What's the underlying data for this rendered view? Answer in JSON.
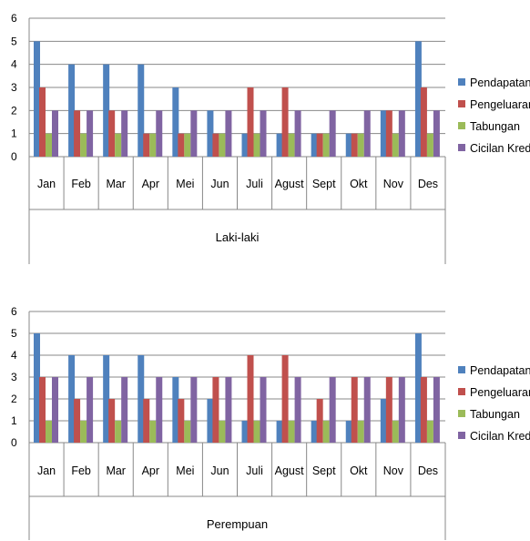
{
  "colors": {
    "Pendapatan": "#4f81bd",
    "Pengeluaran": "#c0504d",
    "Tabungan": "#9bbb59",
    "Cicilan Kredit": "#8064a2",
    "grid": "#888888",
    "axis": "#888888"
  },
  "chart_data": [
    {
      "type": "bar",
      "group_label": "Laki-laki",
      "categories": [
        "Jan",
        "Feb",
        "Mar",
        "Apr",
        "Mei",
        "Jun",
        "Juli",
        "Agust",
        "Sept",
        "Okt",
        "Nov",
        "Des"
      ],
      "ylim": [
        0,
        6
      ],
      "yticks": [
        0,
        1,
        2,
        3,
        4,
        5,
        6
      ],
      "grid": true,
      "legend_position": "right",
      "series": [
        {
          "name": "Pendapatan",
          "values": [
            5,
            4,
            4,
            4,
            3,
            2,
            1,
            1,
            1,
            1,
            2,
            5
          ]
        },
        {
          "name": "Pengeluaran",
          "values": [
            3,
            2,
            2,
            1,
            1,
            1,
            3,
            3,
            1,
            1,
            2,
            3
          ]
        },
        {
          "name": "Tabungan",
          "values": [
            1,
            1,
            1,
            1,
            1,
            1,
            1,
            1,
            1,
            1,
            1,
            1
          ]
        },
        {
          "name": "Cicilan Kredit",
          "values": [
            2,
            2,
            2,
            2,
            2,
            2,
            2,
            2,
            2,
            2,
            2,
            2
          ]
        }
      ]
    },
    {
      "type": "bar",
      "group_label": "Perempuan",
      "categories": [
        "Jan",
        "Feb",
        "Mar",
        "Apr",
        "Mei",
        "Jun",
        "Juli",
        "Agust",
        "Sept",
        "Okt",
        "Nov",
        "Des"
      ],
      "ylim": [
        0,
        6
      ],
      "yticks": [
        0,
        1,
        2,
        3,
        4,
        5,
        6
      ],
      "grid": true,
      "legend_position": "right",
      "series": [
        {
          "name": "Pendapatan",
          "values": [
            5,
            4,
            4,
            4,
            3,
            2,
            1,
            1,
            1,
            1,
            2,
            5
          ]
        },
        {
          "name": "Pengeluaran",
          "values": [
            3,
            2,
            2,
            2,
            2,
            3,
            4,
            4,
            2,
            3,
            3,
            3
          ]
        },
        {
          "name": "Tabungan",
          "values": [
            1,
            1,
            1,
            1,
            1,
            1,
            1,
            1,
            1,
            1,
            1,
            1
          ]
        },
        {
          "name": "Cicilan Kredit",
          "values": [
            3,
            3,
            3,
            3,
            3,
            3,
            3,
            3,
            3,
            3,
            3,
            3
          ]
        }
      ]
    }
  ]
}
